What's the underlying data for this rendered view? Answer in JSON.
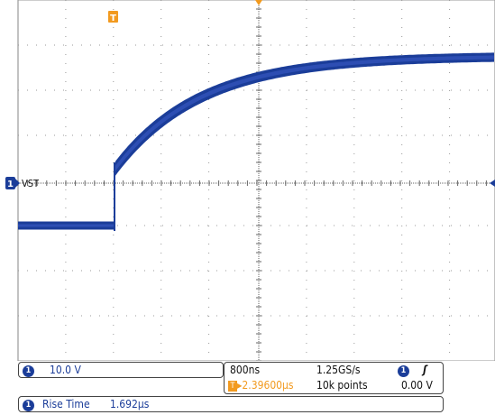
{
  "channel": {
    "number": "1",
    "label": "VST",
    "scale": "10.0 V"
  },
  "trigger_marker": "T",
  "timebase": {
    "scale": "800ns",
    "sample_rate": "1.25GS/s",
    "trigger_position_icon": "T",
    "trigger_position_arrow": "▸",
    "trigger_position": "2.39600µs",
    "record_length": "10k points"
  },
  "trigger": {
    "channel": "1",
    "edge_icon": "rising-edge-icon",
    "edge_symbol": "ʃ",
    "level": "0.00 V"
  },
  "measurement": {
    "channel": "1",
    "name": "Rise Time",
    "value": "1.692µs"
  },
  "colors": {
    "trace": "#1b3d99",
    "trace_light": "#3c5cc8",
    "trigger": "#f29a1f",
    "grid": "#999999"
  }
}
